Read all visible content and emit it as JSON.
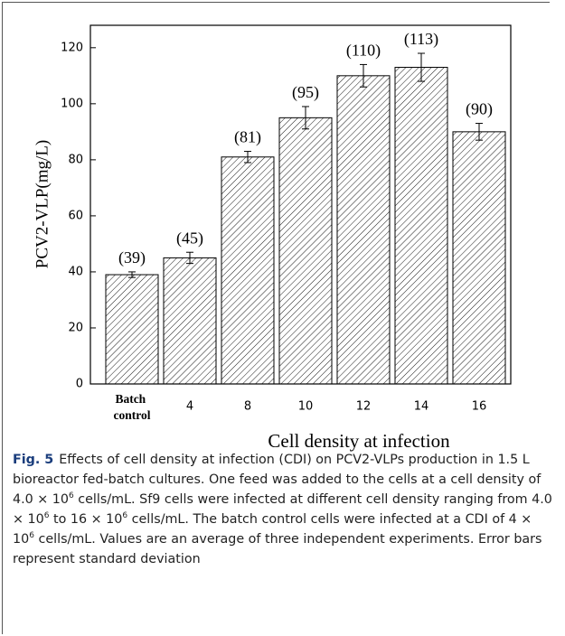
{
  "chart_data": {
    "type": "bar",
    "ylabel": "PCV2-VLP(mg/L)",
    "xlabel": "Cell density at infection",
    "categories": [
      "Batch control",
      "4",
      "8",
      "10",
      "12",
      "14",
      "16"
    ],
    "values": [
      39,
      45,
      81,
      95,
      110,
      113,
      90
    ],
    "value_labels": [
      "(39)",
      "(45)",
      "(81)",
      "(95)",
      "(110)",
      "(113)",
      "(90)"
    ],
    "errors": [
      1,
      2,
      2,
      4,
      4,
      5,
      3
    ],
    "color": "#000000",
    "ylim": [
      0,
      128
    ],
    "yticks": [
      0,
      20,
      40,
      60,
      80,
      100,
      120
    ]
  },
  "caption": {
    "label": "Fig. 5",
    "parts": [
      "Effects of cell density at infection (CDI) on PCV2-VLPs production in 1.5 L bioreactor fed-batch cultures. One feed was added to the cells at a cell density of 4.0 × 10",
      "6",
      " cells/mL. Sf9 cells were infected at different cell density ranging from 4.0 × 10",
      "6",
      " to 16 × 10",
      "6",
      " cells/mL. The batch control cells were infected at a CDI of 4 × 10",
      "6",
      " cells/mL. Values are an average of three independent experiments. Error bars represent standard deviation"
    ]
  }
}
